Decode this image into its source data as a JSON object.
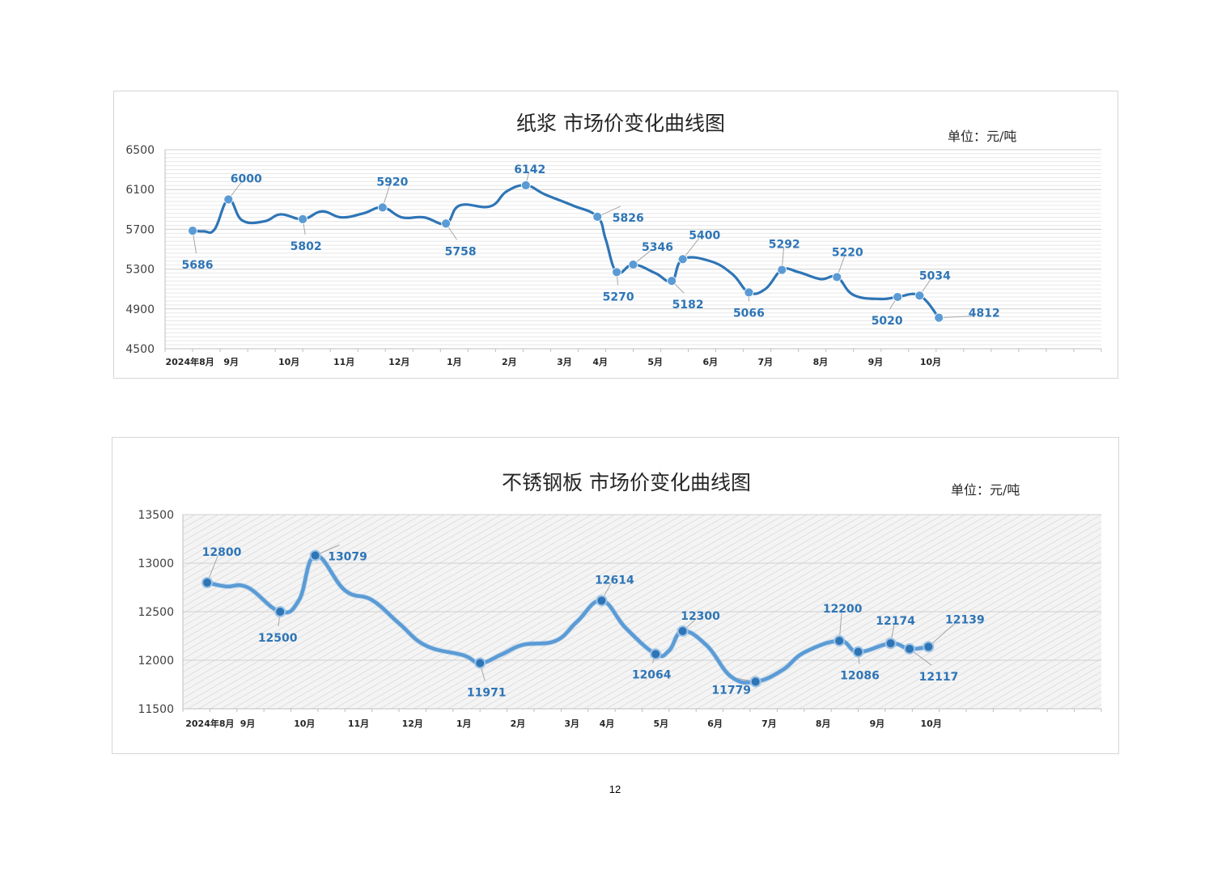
{
  "page": {
    "number": "12"
  },
  "chart_data": [
    {
      "type": "line",
      "title": "纸浆 市场价变化曲线图",
      "unit": "单位：元/吨",
      "ylim": [
        4500,
        6500
      ],
      "yticks": [
        4500,
        4900,
        5300,
        5700,
        6100,
        6500
      ],
      "xlim": [
        0,
        17
      ],
      "xticks": [
        {
          "label": "2024年8月",
          "x": 0.45
        },
        {
          "label": "9月",
          "x": 1.2
        },
        {
          "label": "10月",
          "x": 2.25
        },
        {
          "label": "11月",
          "x": 3.25
        },
        {
          "label": "12月",
          "x": 4.25
        },
        {
          "label": "1月",
          "x": 5.25
        },
        {
          "label": "2月",
          "x": 6.25
        },
        {
          "label": "3月",
          "x": 7.25
        },
        {
          "label": "4月",
          "x": 7.9
        },
        {
          "label": "5月",
          "x": 8.9
        },
        {
          "label": "6月",
          "x": 9.9
        },
        {
          "label": "7月",
          "x": 10.9
        },
        {
          "label": "8月",
          "x": 11.9
        },
        {
          "label": "9月",
          "x": 12.9
        },
        {
          "label": "10月",
          "x": 13.9
        }
      ],
      "grid": true,
      "color": "#2e75b6",
      "marker_color": "#5b9bd5",
      "label_color": "#2e75b6",
      "series": [
        {
          "values": [
            {
              "x": 0.5,
              "y": 5686,
              "label": "5686"
            },
            {
              "x": 0.7,
              "y": 5680
            },
            {
              "x": 0.9,
              "y": 5700
            },
            {
              "x": 1.15,
              "y": 6000,
              "label": "6000"
            },
            {
              "x": 1.4,
              "y": 5790
            },
            {
              "x": 1.8,
              "y": 5780
            },
            {
              "x": 2.1,
              "y": 5850
            },
            {
              "x": 2.5,
              "y": 5802,
              "label": "5802"
            },
            {
              "x": 2.85,
              "y": 5880
            },
            {
              "x": 3.2,
              "y": 5820
            },
            {
              "x": 3.6,
              "y": 5860
            },
            {
              "x": 3.95,
              "y": 5920,
              "label": "5920"
            },
            {
              "x": 4.3,
              "y": 5820
            },
            {
              "x": 4.7,
              "y": 5820
            },
            {
              "x": 5.1,
              "y": 5758,
              "label": "5758"
            },
            {
              "x": 5.35,
              "y": 5940
            },
            {
              "x": 5.9,
              "y": 5930
            },
            {
              "x": 6.2,
              "y": 6080
            },
            {
              "x": 6.55,
              "y": 6142,
              "label": "6142"
            },
            {
              "x": 6.9,
              "y": 6050
            },
            {
              "x": 7.4,
              "y": 5940
            },
            {
              "x": 7.85,
              "y": 5826,
              "label": "5826"
            },
            {
              "x": 8.0,
              "y": 5600
            },
            {
              "x": 8.2,
              "y": 5270,
              "label": "5270"
            },
            {
              "x": 8.5,
              "y": 5346,
              "label": "5346"
            },
            {
              "x": 8.9,
              "y": 5260
            },
            {
              "x": 9.2,
              "y": 5182,
              "label": "5182"
            },
            {
              "x": 9.4,
              "y": 5400,
              "label": "5400"
            },
            {
              "x": 9.9,
              "y": 5380
            },
            {
              "x": 10.3,
              "y": 5250
            },
            {
              "x": 10.6,
              "y": 5066,
              "label": "5066"
            },
            {
              "x": 10.9,
              "y": 5100
            },
            {
              "x": 11.2,
              "y": 5292,
              "label": "5292"
            },
            {
              "x": 11.5,
              "y": 5270
            },
            {
              "x": 11.9,
              "y": 5200
            },
            {
              "x": 12.2,
              "y": 5220,
              "label": "5220"
            },
            {
              "x": 12.5,
              "y": 5040
            },
            {
              "x": 13.0,
              "y": 5000
            },
            {
              "x": 13.3,
              "y": 5020,
              "label": "5020"
            },
            {
              "x": 13.7,
              "y": 5034,
              "label": "5034"
            },
            {
              "x": 14.05,
              "y": 4812,
              "label": "4812"
            }
          ]
        }
      ]
    },
    {
      "type": "line",
      "title": "不锈钢板 市场价变化曲线图",
      "unit": "单位：元/吨",
      "ylim": [
        11500,
        13500
      ],
      "yticks": [
        11500,
        12000,
        12500,
        13000,
        13500
      ],
      "xlim": [
        0,
        17
      ],
      "xticks": [
        {
          "label": "2024年8月",
          "x": 0.5
        },
        {
          "label": "9月",
          "x": 1.2
        },
        {
          "label": "10月",
          "x": 2.25
        },
        {
          "label": "11月",
          "x": 3.25
        },
        {
          "label": "12月",
          "x": 4.25
        },
        {
          "label": "1月",
          "x": 5.2
        },
        {
          "label": "2月",
          "x": 6.2
        },
        {
          "label": "3月",
          "x": 7.2
        },
        {
          "label": "4月",
          "x": 7.85
        },
        {
          "label": "5月",
          "x": 8.85
        },
        {
          "label": "6月",
          "x": 9.85
        },
        {
          "label": "7月",
          "x": 10.85
        },
        {
          "label": "8月",
          "x": 11.85
        },
        {
          "label": "9月",
          "x": 12.85
        },
        {
          "label": "10月",
          "x": 13.85
        }
      ],
      "grid": true,
      "color": "#5b9bd5",
      "marker_color": "#2e75b6",
      "label_color": "#2e75b6",
      "series": [
        {
          "values": [
            {
              "x": 0.45,
              "y": 12800,
              "label": "12800"
            },
            {
              "x": 0.8,
              "y": 12760
            },
            {
              "x": 1.2,
              "y": 12750
            },
            {
              "x": 1.8,
              "y": 12500,
              "label": "12500"
            },
            {
              "x": 2.15,
              "y": 12620
            },
            {
              "x": 2.45,
              "y": 13079,
              "label": "13079"
            },
            {
              "x": 3.0,
              "y": 12720
            },
            {
              "x": 3.5,
              "y": 12620
            },
            {
              "x": 4.0,
              "y": 12380
            },
            {
              "x": 4.5,
              "y": 12150
            },
            {
              "x": 5.2,
              "y": 12050
            },
            {
              "x": 5.5,
              "y": 11971,
              "label": "11971"
            },
            {
              "x": 5.9,
              "y": 12060
            },
            {
              "x": 6.3,
              "y": 12160
            },
            {
              "x": 6.9,
              "y": 12200
            },
            {
              "x": 7.3,
              "y": 12400
            },
            {
              "x": 7.75,
              "y": 12614,
              "label": "12614"
            },
            {
              "x": 8.2,
              "y": 12330
            },
            {
              "x": 8.75,
              "y": 12064,
              "label": "12064"
            },
            {
              "x": 9.0,
              "y": 12100
            },
            {
              "x": 9.25,
              "y": 12300,
              "label": "12300"
            },
            {
              "x": 9.7,
              "y": 12150
            },
            {
              "x": 10.15,
              "y": 11830
            },
            {
              "x": 10.6,
              "y": 11779,
              "label": "11779"
            },
            {
              "x": 11.1,
              "y": 11900
            },
            {
              "x": 11.5,
              "y": 12080
            },
            {
              "x": 12.15,
              "y": 12200,
              "label": "12200"
            },
            {
              "x": 12.5,
              "y": 12086,
              "label": "12086"
            },
            {
              "x": 13.1,
              "y": 12174,
              "label": "12174"
            },
            {
              "x": 13.45,
              "y": 12117,
              "label": "12117"
            },
            {
              "x": 13.8,
              "y": 12139,
              "label": "12139"
            }
          ]
        }
      ]
    }
  ]
}
